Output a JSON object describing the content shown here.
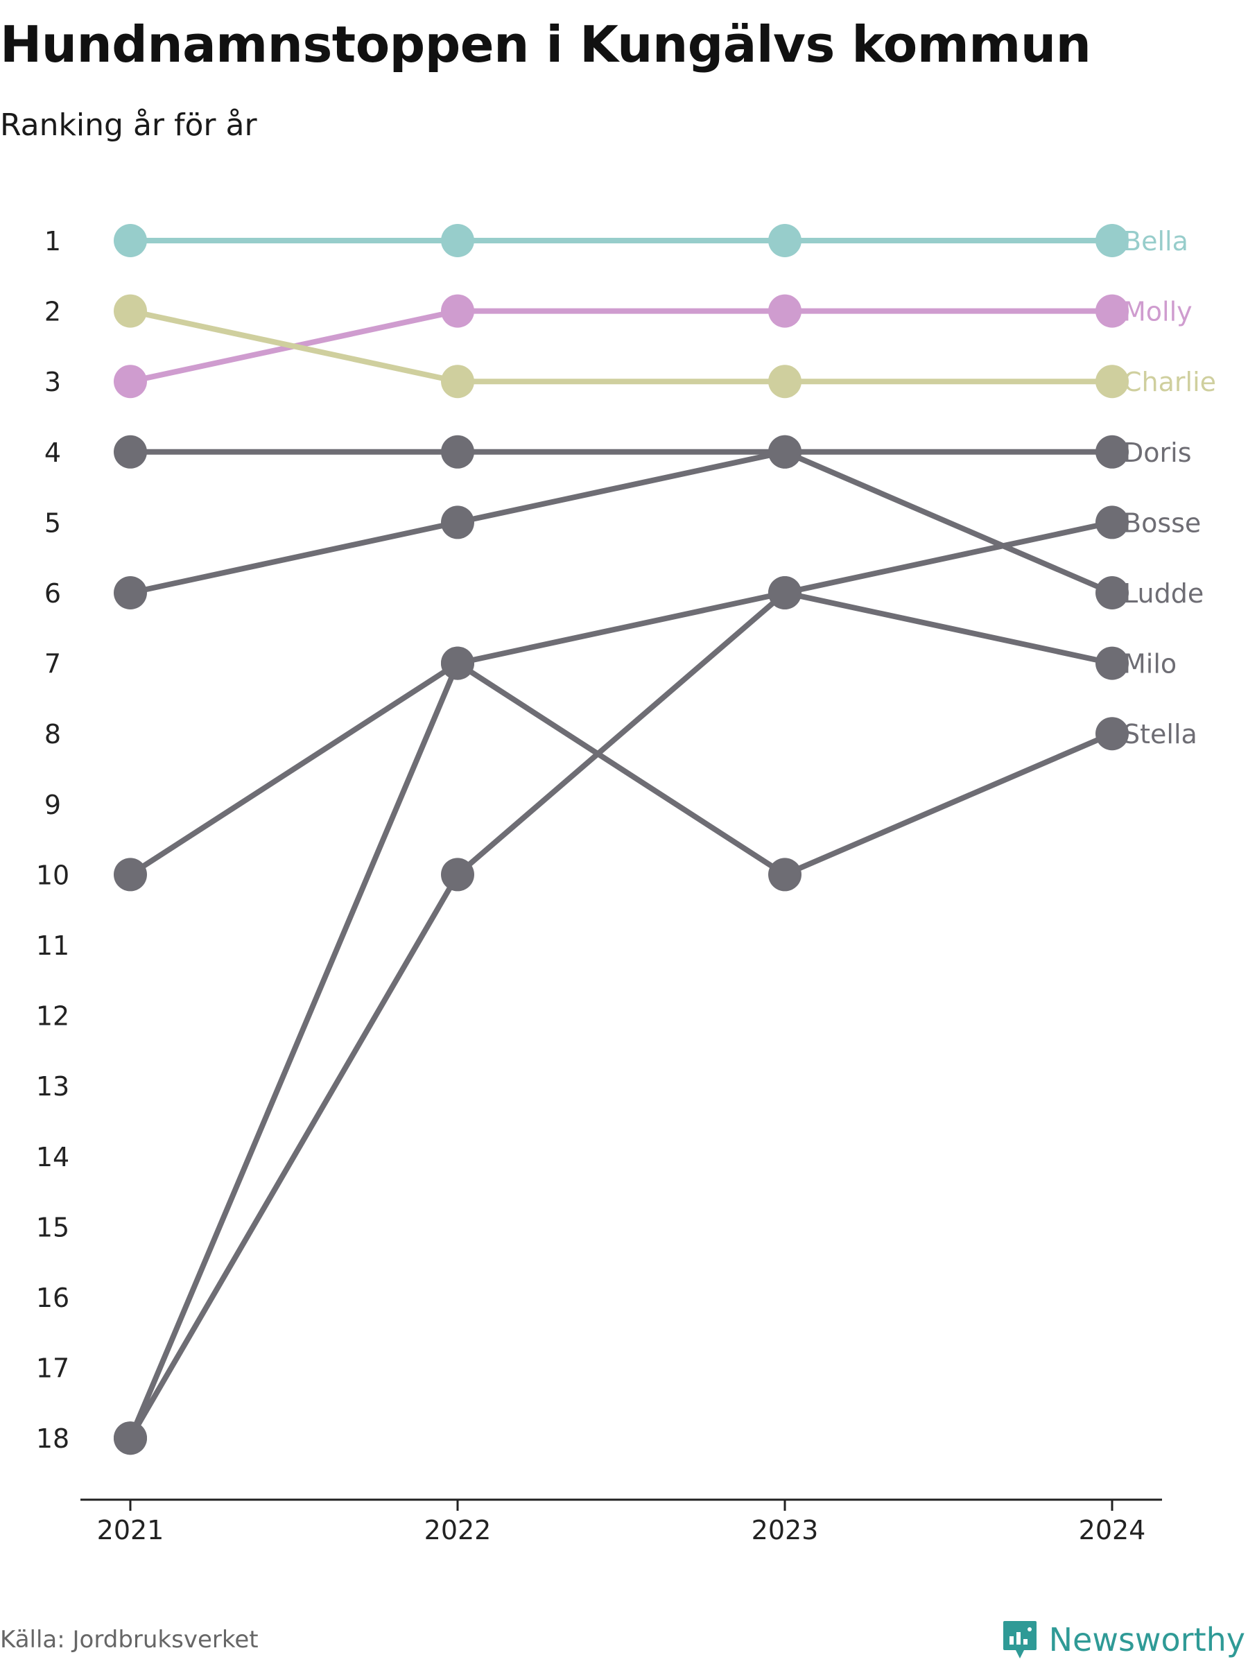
{
  "header": {
    "title": "Hundnamnstoppen i Kungälvs kommun",
    "subtitle": "Ranking år för år"
  },
  "footer": {
    "source": "Källa: Jordbruksverket",
    "brand": "Newsworthy"
  },
  "colors": {
    "bella": "#97cdcb",
    "molly": "#cf9ccf",
    "charlie": "#cfcf9e",
    "gray": "#6e6d74",
    "axis": "#222222",
    "brand": "#2f9a96"
  },
  "chart_data": {
    "type": "line",
    "title": "Hundnamnstoppen i Kungälvs kommun",
    "subtitle": "Ranking år för år",
    "x": [
      "2021",
      "2022",
      "2023",
      "2024"
    ],
    "y_ticks": [
      "1",
      "2",
      "3",
      "4",
      "5",
      "6",
      "7",
      "8",
      "9",
      "10",
      "11",
      "12",
      "13",
      "14",
      "15",
      "16",
      "17",
      "18"
    ],
    "ylim": [
      1,
      18
    ],
    "y_reversed": true,
    "grid": false,
    "legend": "direct labels at right end of lines",
    "series": [
      {
        "name": "Bella",
        "values": [
          1,
          1,
          1,
          1
        ],
        "color": "#97cdcb"
      },
      {
        "name": "Molly",
        "values": [
          3,
          2,
          2,
          2
        ],
        "color": "#cf9ccf"
      },
      {
        "name": "Charlie",
        "values": [
          2,
          3,
          3,
          3
        ],
        "color": "#cfcf9e"
      },
      {
        "name": "Doris",
        "values": [
          4,
          4,
          4,
          4
        ],
        "color": "#6e6d74"
      },
      {
        "name": "Bosse",
        "values": [
          18,
          10,
          6,
          5
        ],
        "color": "#6e6d74"
      },
      {
        "name": "Ludde",
        "values": [
          6,
          5,
          4,
          6
        ],
        "color": "#6e6d74"
      },
      {
        "name": "Milo",
        "values": [
          18,
          7,
          6,
          7
        ],
        "color": "#6e6d74"
      },
      {
        "name": "Stella",
        "values": [
          10,
          7,
          10,
          8
        ],
        "color": "#6e6d74"
      }
    ]
  }
}
